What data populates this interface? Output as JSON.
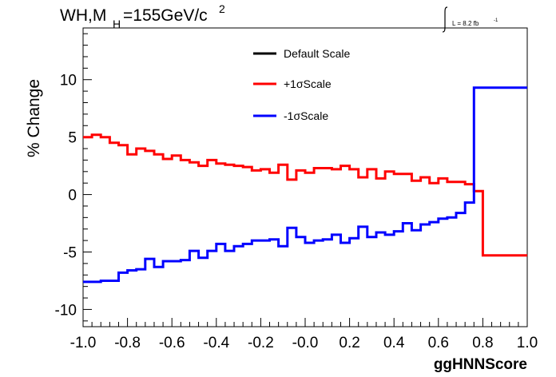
{
  "chart_data": {
    "type": "line",
    "style": "histogram-step",
    "title_parts": {
      "main": "WH,M",
      "sub": "H",
      "value": "=155GeV/c",
      "sup": "2"
    },
    "lumi_label": "L = 8.2 fb",
    "lumi_sup": "-1",
    "xlabel": "ggHNNScore",
    "ylabel": "% Change",
    "xlim": [
      -1.0,
      1.0
    ],
    "ylim": [
      -11.5,
      14.5
    ],
    "xticks": [
      -1.0,
      -0.8,
      -0.6,
      -0.4,
      -0.2,
      0.0,
      0.2,
      0.4,
      0.6,
      0.8,
      1.0
    ],
    "xtick_labels": [
      "-1.0",
      "-0.8",
      "-0.6",
      "-0.4",
      "-0.2",
      "-0.0",
      "0.2",
      "0.4",
      "0.6",
      "0.8",
      "1.0"
    ],
    "yticks": [
      -10,
      -5,
      0,
      5,
      10
    ],
    "ytick_labels": [
      "-10",
      "-5",
      "0",
      "5",
      "10"
    ],
    "grid": false,
    "legend_position": "top-center",
    "bin_edges_start": -1.0,
    "bin_width": 0.04,
    "series": [
      {
        "name": "Default Scale",
        "color": "#000000",
        "values": []
      },
      {
        "name": "+1σScale",
        "color": "#ff0000",
        "values": [
          5.0,
          5.2,
          5.0,
          4.5,
          4.3,
          3.5,
          4.0,
          3.8,
          3.5,
          3.1,
          3.4,
          3.0,
          2.8,
          2.5,
          3.0,
          2.7,
          2.6,
          2.5,
          2.4,
          2.1,
          2.2,
          1.9,
          2.6,
          1.3,
          2.1,
          1.9,
          2.3,
          2.3,
          2.2,
          2.5,
          2.2,
          1.5,
          2.2,
          1.4,
          2.0,
          1.8,
          1.8,
          1.2,
          1.5,
          1.0,
          1.4,
          1.1,
          1.1,
          0.9,
          0.3,
          -5.3,
          -5.3,
          -5.3,
          -5.3,
          -5.3
        ]
      },
      {
        "name": "-1σScale",
        "color": "#0000ff",
        "values": [
          -7.6,
          -7.6,
          -7.5,
          -7.5,
          -6.8,
          -6.6,
          -6.5,
          -5.6,
          -6.3,
          -5.8,
          -5.8,
          -5.7,
          -4.9,
          -5.5,
          -4.9,
          -4.3,
          -4.9,
          -4.5,
          -4.3,
          -4.0,
          -4.0,
          -3.9,
          -4.5,
          -2.9,
          -3.7,
          -4.2,
          -4.0,
          -3.9,
          -3.5,
          -4.2,
          -3.8,
          -2.8,
          -3.7,
          -3.3,
          -3.5,
          -3.2,
          -2.5,
          -3.1,
          -2.6,
          -2.4,
          -2.1,
          -2.0,
          -1.6,
          -0.7,
          9.3,
          9.3,
          9.3,
          9.3,
          9.3,
          9.3
        ]
      }
    ]
  }
}
